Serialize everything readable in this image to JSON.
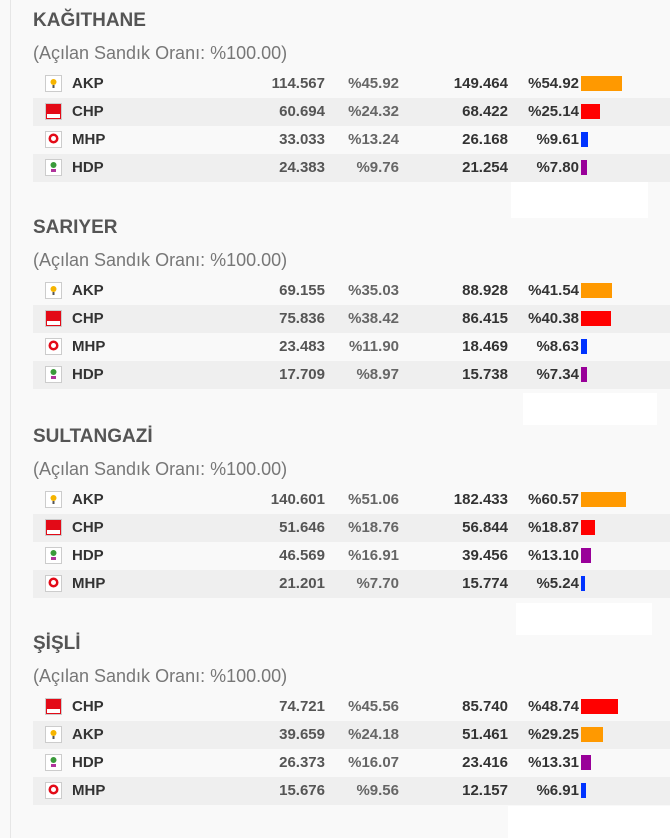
{
  "colors": {
    "AKP": "#ff9900",
    "CHP": "#ff0000",
    "MHP": "#0033ff",
    "HDP": "#990099"
  },
  "districts": [
    {
      "name": "KAĞITHANE",
      "subtitle": "(Açılan Sandık Oranı: %100.00)",
      "rows": [
        {
          "party": "AKP",
          "votes_prev": "114.567",
          "pct_prev": "%45.92",
          "votes": "149.464",
          "pct": "%54.92",
          "bar": 54.92
        },
        {
          "party": "CHP",
          "votes_prev": "60.694",
          "pct_prev": "%24.32",
          "votes": "68.422",
          "pct": "%25.14",
          "bar": 25.14
        },
        {
          "party": "MHP",
          "votes_prev": "33.033",
          "pct_prev": "%13.24",
          "votes": "26.168",
          "pct": "%9.61",
          "bar": 9.61
        },
        {
          "party": "HDP",
          "votes_prev": "24.383",
          "pct_prev": "%9.76",
          "votes": "21.254",
          "pct": "%7.80",
          "bar": 7.8
        }
      ]
    },
    {
      "name": "SARIYER",
      "subtitle": "(Açılan Sandık Oranı: %100.00)",
      "rows": [
        {
          "party": "AKP",
          "votes_prev": "69.155",
          "pct_prev": "%35.03",
          "votes": "88.928",
          "pct": "%41.54",
          "bar": 41.54
        },
        {
          "party": "CHP",
          "votes_prev": "75.836",
          "pct_prev": "%38.42",
          "votes": "86.415",
          "pct": "%40.38",
          "bar": 40.38
        },
        {
          "party": "MHP",
          "votes_prev": "23.483",
          "pct_prev": "%11.90",
          "votes": "18.469",
          "pct": "%8.63",
          "bar": 8.63
        },
        {
          "party": "HDP",
          "votes_prev": "17.709",
          "pct_prev": "%8.97",
          "votes": "15.738",
          "pct": "%7.34",
          "bar": 7.34
        }
      ]
    },
    {
      "name": "SULTANGAZİ",
      "subtitle": "(Açılan Sandık Oranı: %100.00)",
      "rows": [
        {
          "party": "AKP",
          "votes_prev": "140.601",
          "pct_prev": "%51.06",
          "votes": "182.433",
          "pct": "%60.57",
          "bar": 60.57
        },
        {
          "party": "CHP",
          "votes_prev": "51.646",
          "pct_prev": "%18.76",
          "votes": "56.844",
          "pct": "%18.87",
          "bar": 18.87
        },
        {
          "party": "HDP",
          "votes_prev": "46.569",
          "pct_prev": "%16.91",
          "votes": "39.456",
          "pct": "%13.10",
          "bar": 13.1
        },
        {
          "party": "MHP",
          "votes_prev": "21.201",
          "pct_prev": "%7.70",
          "votes": "15.774",
          "pct": "%5.24",
          "bar": 5.24
        }
      ]
    },
    {
      "name": "ŞİŞLİ",
      "subtitle": "(Açılan Sandık Oranı: %100.00)",
      "rows": [
        {
          "party": "CHP",
          "votes_prev": "74.721",
          "pct_prev": "%45.56",
          "votes": "85.740",
          "pct": "%48.74",
          "bar": 48.74
        },
        {
          "party": "AKP",
          "votes_prev": "39.659",
          "pct_prev": "%24.18",
          "votes": "51.461",
          "pct": "%29.25",
          "bar": 29.25
        },
        {
          "party": "HDP",
          "votes_prev": "26.373",
          "pct_prev": "%16.07",
          "votes": "23.416",
          "pct": "%13.31",
          "bar": 13.31
        },
        {
          "party": "MHP",
          "votes_prev": "15.676",
          "pct_prev": "%9.56",
          "votes": "12.157",
          "pct": "%6.91",
          "bar": 6.91
        }
      ]
    }
  ]
}
